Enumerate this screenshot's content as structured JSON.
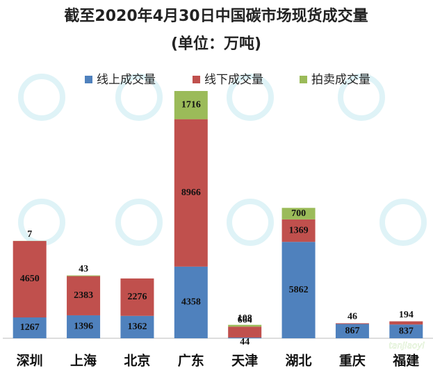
{
  "chart_data": {
    "type": "stacked-bar",
    "title": "截至2020年4月30日中国碳市场现货成交量",
    "subtitle": "(单位：万吨)",
    "categories": [
      "深圳",
      "上海",
      "北京",
      "广东",
      "天津",
      "湖北",
      "重庆",
      "福建"
    ],
    "series": [
      {
        "name": "线上成交量",
        "color": "#4f81bd",
        "values": [
          1267,
          1396,
          1362,
          4358,
          44,
          5862,
          867,
          837
        ]
      },
      {
        "name": "线下成交量",
        "color": "#c0504d",
        "values": [
          4650,
          2383,
          2276,
          8966,
          664,
          1369,
          46,
          194
        ]
      },
      {
        "name": "拍卖成交量",
        "color": "#9bbb59",
        "values": [
          7,
          43,
          null,
          1716,
          108,
          700,
          null,
          null
        ]
      }
    ],
    "legend": "top",
    "watermark": "tanjiaoyi"
  }
}
